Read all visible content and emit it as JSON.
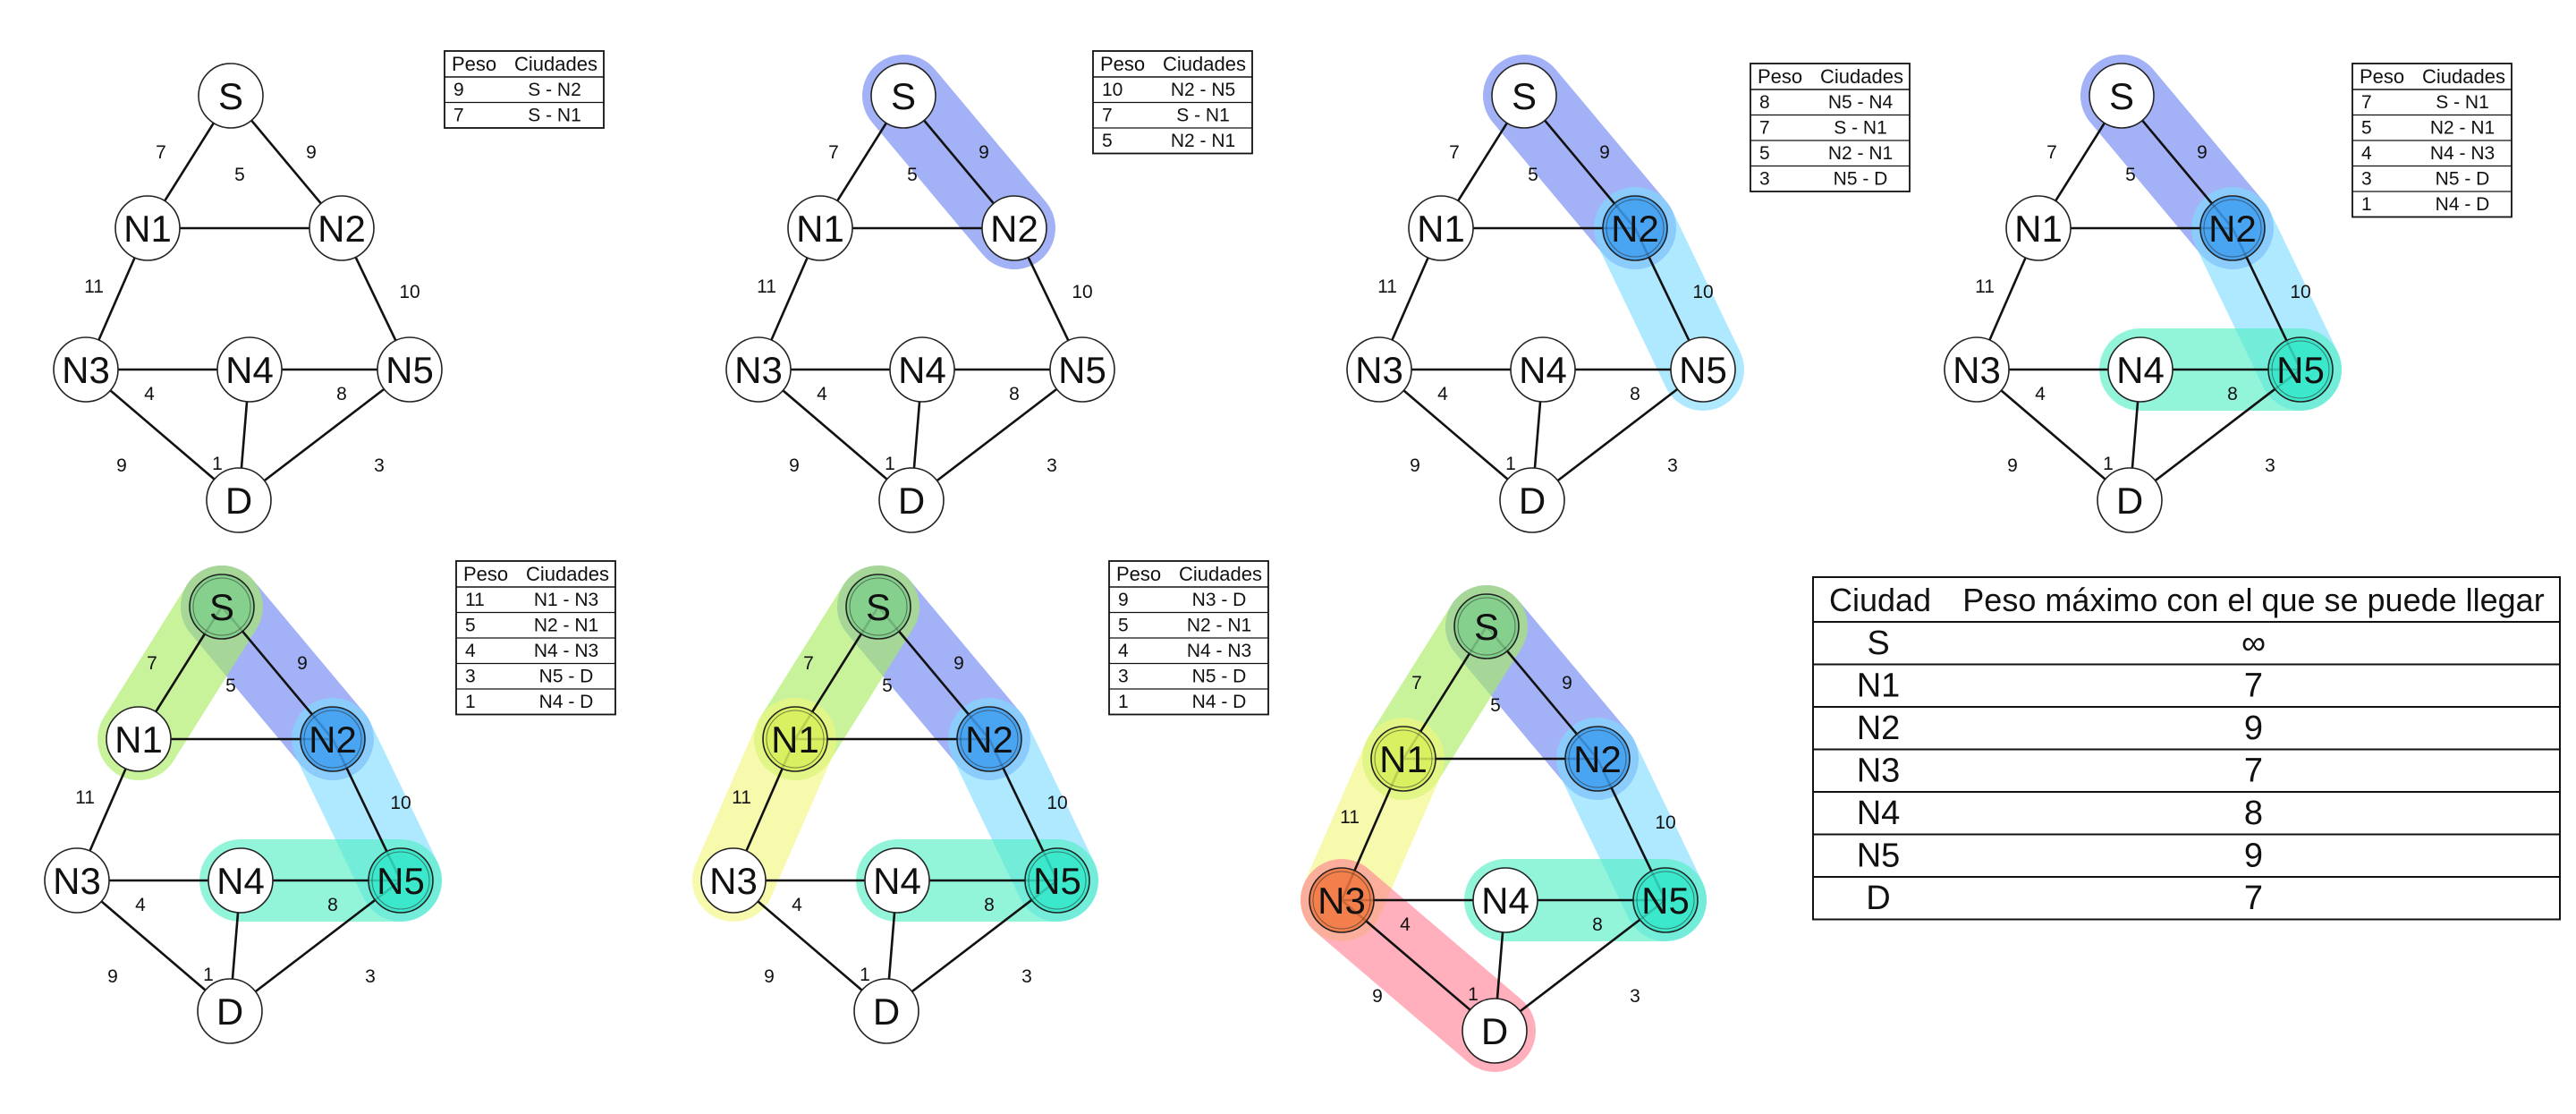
{
  "nodes": [
    {
      "id": "S",
      "label": "S"
    },
    {
      "id": "N1",
      "label": "N1"
    },
    {
      "id": "N2",
      "label": "N2"
    },
    {
      "id": "N3",
      "label": "N3"
    },
    {
      "id": "N4",
      "label": "N4"
    },
    {
      "id": "N5",
      "label": "N5"
    },
    {
      "id": "D",
      "label": "D"
    }
  ],
  "edges": [
    {
      "from": "S",
      "to": "N1",
      "weight": "7"
    },
    {
      "from": "S",
      "to": "N2",
      "weight": "9"
    },
    {
      "from": "N1",
      "to": "N2",
      "weight": "5"
    },
    {
      "from": "N1",
      "to": "N3",
      "weight": "11"
    },
    {
      "from": "N2",
      "to": "N5",
      "weight": "10"
    },
    {
      "from": "N3",
      "to": "N4",
      "weight": "4"
    },
    {
      "from": "N4",
      "to": "N5",
      "weight": "8"
    },
    {
      "from": "N3",
      "to": "D",
      "weight": "9"
    },
    {
      "from": "N4",
      "to": "D",
      "weight": "1"
    },
    {
      "from": "N5",
      "to": "D",
      "weight": "3"
    }
  ],
  "highlight_colors": {
    "blue": "#6b82f0",
    "cyan": "#7ddcff",
    "teal": "#4fefc4",
    "green": "#a8ec5e",
    "yellow": "#f2f57a",
    "red": "#ff7f93",
    "orange": "#f0773e",
    "node_green": "#7fcf8a",
    "node_lime": "#d7f05a",
    "node_blue": "#3d9cf0",
    "node_teal": "#32e6c8"
  },
  "table_headers": {
    "weight": "Peso",
    "cities": "Ciudades"
  },
  "steps": [
    {
      "highlights": [],
      "node_fills": {},
      "table": [
        [
          "9",
          "S - N2"
        ],
        [
          "7",
          "S - N1"
        ]
      ]
    },
    {
      "highlights": [
        {
          "path": [
            "S",
            "N2"
          ],
          "color": "blue"
        }
      ],
      "node_fills": {},
      "table": [
        [
          "10",
          "N2 - N5"
        ],
        [
          "7",
          "S - N1"
        ],
        [
          "5",
          "N2 - N1"
        ]
      ]
    },
    {
      "highlights": [
        {
          "path": [
            "S",
            "N2"
          ],
          "color": "blue"
        },
        {
          "path": [
            "N2",
            "N5"
          ],
          "color": "cyan"
        }
      ],
      "node_fills": {
        "N2": "node_blue"
      },
      "table": [
        [
          "8",
          "N5 - N4"
        ],
        [
          "7",
          "S - N1"
        ],
        [
          "5",
          "N2 - N1"
        ],
        [
          "3",
          "N5 - D"
        ]
      ]
    },
    {
      "highlights": [
        {
          "path": [
            "S",
            "N2"
          ],
          "color": "blue"
        },
        {
          "path": [
            "N2",
            "N5"
          ],
          "color": "cyan"
        },
        {
          "path": [
            "N5",
            "N4"
          ],
          "color": "teal"
        }
      ],
      "node_fills": {
        "N2": "node_blue",
        "N5": "node_teal"
      },
      "table": [
        [
          "7",
          "S - N1"
        ],
        [
          "5",
          "N2 - N1"
        ],
        [
          "4",
          "N4 - N3"
        ],
        [
          "3",
          "N5 - D"
        ],
        [
          "1",
          "N4 - D"
        ]
      ]
    },
    {
      "highlights": [
        {
          "path": [
            "S",
            "N2"
          ],
          "color": "blue"
        },
        {
          "path": [
            "N2",
            "N5"
          ],
          "color": "cyan"
        },
        {
          "path": [
            "N5",
            "N4"
          ],
          "color": "teal"
        },
        {
          "path": [
            "S",
            "N1"
          ],
          "color": "green"
        }
      ],
      "node_fills": {
        "S": "node_green",
        "N2": "node_blue",
        "N5": "node_teal"
      },
      "table": [
        [
          "11",
          "N1 - N3"
        ],
        [
          "5",
          "N2 - N1"
        ],
        [
          "4",
          "N4 - N3"
        ],
        [
          "3",
          "N5 - D"
        ],
        [
          "1",
          "N4 - D"
        ]
      ]
    },
    {
      "highlights": [
        {
          "path": [
            "S",
            "N2"
          ],
          "color": "blue"
        },
        {
          "path": [
            "N2",
            "N5"
          ],
          "color": "cyan"
        },
        {
          "path": [
            "N5",
            "N4"
          ],
          "color": "teal"
        },
        {
          "path": [
            "S",
            "N1"
          ],
          "color": "green"
        },
        {
          "path": [
            "N1",
            "N3"
          ],
          "color": "yellow"
        }
      ],
      "node_fills": {
        "S": "node_green",
        "N1": "node_lime",
        "N2": "node_blue",
        "N5": "node_teal"
      },
      "table": [
        [
          "9",
          "N3 - D"
        ],
        [
          "5",
          "N2 - N1"
        ],
        [
          "4",
          "N4 - N3"
        ],
        [
          "3",
          "N5 - D"
        ],
        [
          "1",
          "N4 - D"
        ]
      ]
    },
    {
      "highlights": [
        {
          "path": [
            "S",
            "N2"
          ],
          "color": "blue"
        },
        {
          "path": [
            "N2",
            "N5"
          ],
          "color": "cyan"
        },
        {
          "path": [
            "N5",
            "N4"
          ],
          "color": "teal"
        },
        {
          "path": [
            "S",
            "N1"
          ],
          "color": "green"
        },
        {
          "path": [
            "N1",
            "N3"
          ],
          "color": "yellow"
        },
        {
          "path": [
            "N3",
            "D"
          ],
          "color": "red"
        }
      ],
      "node_fills": {
        "S": "node_green",
        "N1": "node_lime",
        "N2": "node_blue",
        "N5": "node_teal",
        "N3": "orange"
      },
      "table": []
    }
  ],
  "result_table": {
    "headers": [
      "Ciudad",
      "Peso máximo con el que se puede llegar"
    ],
    "rows": [
      [
        "S",
        "∞"
      ],
      [
        "N1",
        "7"
      ],
      [
        "N2",
        "9"
      ],
      [
        "N3",
        "7"
      ],
      [
        "N4",
        "8"
      ],
      [
        "N5",
        "9"
      ],
      [
        "D",
        "7"
      ]
    ]
  }
}
